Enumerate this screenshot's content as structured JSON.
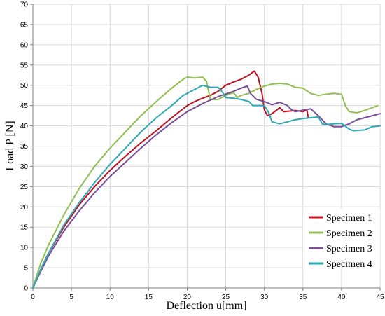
{
  "chart_data": {
    "type": "line",
    "title": "",
    "xlabel": "Deflection  u[mm]",
    "ylabel": "Load  P  [N]",
    "xlim": [
      0,
      45
    ],
    "ylim": [
      0,
      70
    ],
    "xticks": [
      "0",
      "5",
      "10",
      "15",
      "20",
      "25",
      "30",
      "35",
      "40",
      "45"
    ],
    "yticks": [
      "0",
      "5",
      "10",
      "15",
      "20",
      "25",
      "30",
      "35",
      "40",
      "45",
      "50",
      "55",
      "60",
      "65",
      "70"
    ],
    "grid": true,
    "legend_position": "bottom-right",
    "series": [
      {
        "name": "Specimen 1",
        "color": "#c0111f",
        "points": [
          [
            0,
            0
          ],
          [
            1,
            4.5
          ],
          [
            2,
            8.5
          ],
          [
            4,
            15
          ],
          [
            6,
            20.5
          ],
          [
            8,
            25
          ],
          [
            10,
            29
          ],
          [
            12,
            32.5
          ],
          [
            14,
            35.8
          ],
          [
            16,
            38.8
          ],
          [
            18,
            42
          ],
          [
            20,
            45
          ],
          [
            21,
            46
          ],
          [
            22,
            46.8
          ],
          [
            23,
            47.5
          ],
          [
            24,
            48.5
          ],
          [
            25,
            50
          ],
          [
            26,
            50.8
          ],
          [
            27,
            51.5
          ],
          [
            28,
            52.5
          ],
          [
            28.7,
            53.5
          ],
          [
            29.2,
            52
          ],
          [
            29.7,
            48
          ],
          [
            30,
            44
          ],
          [
            30.4,
            42.5
          ],
          [
            31,
            43
          ],
          [
            32,
            44.5
          ],
          [
            32.5,
            43.5
          ],
          [
            34,
            43.8
          ],
          [
            35,
            43.5
          ],
          [
            35.5,
            44
          ],
          [
            35.7,
            42
          ]
        ]
      },
      {
        "name": "Specimen 2",
        "color": "#92bf4f",
        "points": [
          [
            0,
            0
          ],
          [
            1,
            6
          ],
          [
            2,
            10.5
          ],
          [
            4,
            18
          ],
          [
            6,
            24.5
          ],
          [
            8,
            30
          ],
          [
            10,
            34.5
          ],
          [
            12,
            38.5
          ],
          [
            14,
            42.5
          ],
          [
            16,
            46
          ],
          [
            18,
            49.3
          ],
          [
            19.5,
            51.5
          ],
          [
            20,
            52
          ],
          [
            21,
            51.8
          ],
          [
            22,
            52
          ],
          [
            22.5,
            51
          ],
          [
            23,
            46.5
          ],
          [
            24,
            46.5
          ],
          [
            25,
            47.5
          ],
          [
            26,
            48.2
          ],
          [
            26.5,
            47
          ],
          [
            27,
            47.5
          ],
          [
            28,
            48
          ],
          [
            29,
            49
          ],
          [
            30,
            49.8
          ],
          [
            31,
            50.3
          ],
          [
            32,
            50.5
          ],
          [
            33,
            50.3
          ],
          [
            34,
            49.5
          ],
          [
            35,
            49.3
          ],
          [
            36,
            48
          ],
          [
            37,
            47.5
          ],
          [
            38,
            47.8
          ],
          [
            39,
            48
          ],
          [
            40,
            47.8
          ],
          [
            40.5,
            45
          ],
          [
            41,
            43.5
          ],
          [
            42,
            43.2
          ],
          [
            43,
            43.8
          ],
          [
            44,
            44.5
          ],
          [
            44.7,
            45
          ]
        ]
      },
      {
        "name": "Specimen 3",
        "color": "#7d4f9a",
        "points": [
          [
            0,
            0
          ],
          [
            1,
            4
          ],
          [
            2,
            7.8
          ],
          [
            4,
            14
          ],
          [
            6,
            19
          ],
          [
            8,
            23.5
          ],
          [
            10,
            27.5
          ],
          [
            12,
            31
          ],
          [
            14,
            34.5
          ],
          [
            16,
            37.8
          ],
          [
            18,
            40.8
          ],
          [
            20,
            43.5
          ],
          [
            22,
            45.5
          ],
          [
            24,
            47.2
          ],
          [
            26,
            48.5
          ],
          [
            27,
            49.3
          ],
          [
            27.8,
            49.8
          ],
          [
            28.2,
            48
          ],
          [
            29,
            46.5
          ],
          [
            30,
            46
          ],
          [
            31,
            45.2
          ],
          [
            32,
            45.8
          ],
          [
            33,
            45
          ],
          [
            33.5,
            44
          ],
          [
            34,
            43.5
          ],
          [
            36,
            44.2
          ],
          [
            37,
            42.5
          ],
          [
            38,
            40.5
          ],
          [
            39,
            39.8
          ],
          [
            40,
            39.8
          ],
          [
            41,
            40.5
          ],
          [
            42,
            41.5
          ],
          [
            43,
            42
          ],
          [
            44,
            42.5
          ],
          [
            45,
            43
          ]
        ]
      },
      {
        "name": "Specimen 4",
        "color": "#2ea8b5",
        "points": [
          [
            0,
            0
          ],
          [
            1,
            4.5
          ],
          [
            2,
            8.5
          ],
          [
            4,
            15.5
          ],
          [
            6,
            21
          ],
          [
            8,
            26
          ],
          [
            10,
            30.5
          ],
          [
            12,
            34.5
          ],
          [
            14,
            38.5
          ],
          [
            16,
            42
          ],
          [
            18,
            45
          ],
          [
            19.5,
            47.5
          ],
          [
            20.5,
            48.5
          ],
          [
            21.5,
            49.5
          ],
          [
            22,
            50
          ],
          [
            23,
            49.5
          ],
          [
            24,
            49.5
          ],
          [
            24.5,
            48.5
          ],
          [
            25,
            47
          ],
          [
            26,
            46.8
          ],
          [
            27,
            46.5
          ],
          [
            28,
            46
          ],
          [
            28.5,
            45
          ],
          [
            30,
            45
          ],
          [
            30.5,
            43.5
          ],
          [
            31,
            41
          ],
          [
            32,
            40.5
          ],
          [
            33,
            41
          ],
          [
            34,
            41.5
          ],
          [
            35,
            41.8
          ],
          [
            36,
            42
          ],
          [
            37,
            42.2
          ],
          [
            37.5,
            40.5
          ],
          [
            38,
            40.3
          ],
          [
            39,
            40.5
          ],
          [
            40,
            40.6
          ],
          [
            41,
            39.2
          ],
          [
            41.5,
            38.8
          ],
          [
            43,
            39
          ],
          [
            44,
            39.8
          ],
          [
            45,
            40
          ]
        ]
      }
    ]
  }
}
